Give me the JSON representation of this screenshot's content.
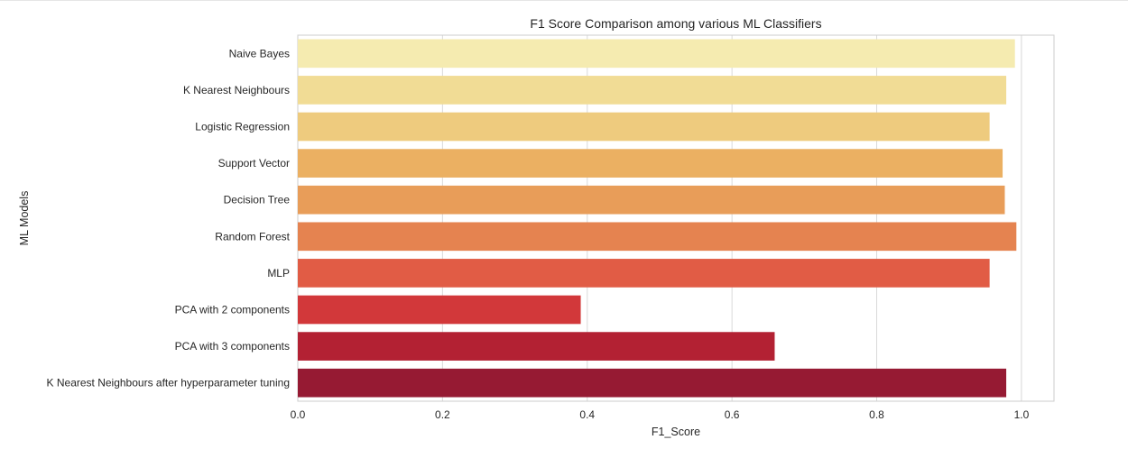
{
  "chart_data": {
    "type": "bar",
    "orientation": "horizontal",
    "title": "F1 Score Comparison among various ML Classifiers",
    "xlabel": "F1_Score",
    "ylabel": "ML Models",
    "xlim": [
      0,
      1.045
    ],
    "xticks": [
      "0.0",
      "0.2",
      "0.4",
      "0.6",
      "0.8",
      "1.0"
    ],
    "grid": true,
    "categories": [
      "Naive Bayes",
      "K Nearest Neighbours",
      "Logistic Regression",
      "Support Vector",
      "Decision Tree",
      "Random Forest",
      "MLP",
      "PCA with 2 components",
      "PCA with 3 components",
      "K Nearest Neighbours after hyperparameter tuning"
    ],
    "values": [
      0.991,
      0.979,
      0.956,
      0.974,
      0.977,
      0.993,
      0.956,
      0.391,
      0.659,
      0.979
    ],
    "colors": [
      "#f5ebb0",
      "#f1dc95",
      "#eecb7e",
      "#ebb062",
      "#e89d59",
      "#e58350",
      "#e15c45",
      "#d2383a",
      "#b32133",
      "#961a33"
    ]
  }
}
